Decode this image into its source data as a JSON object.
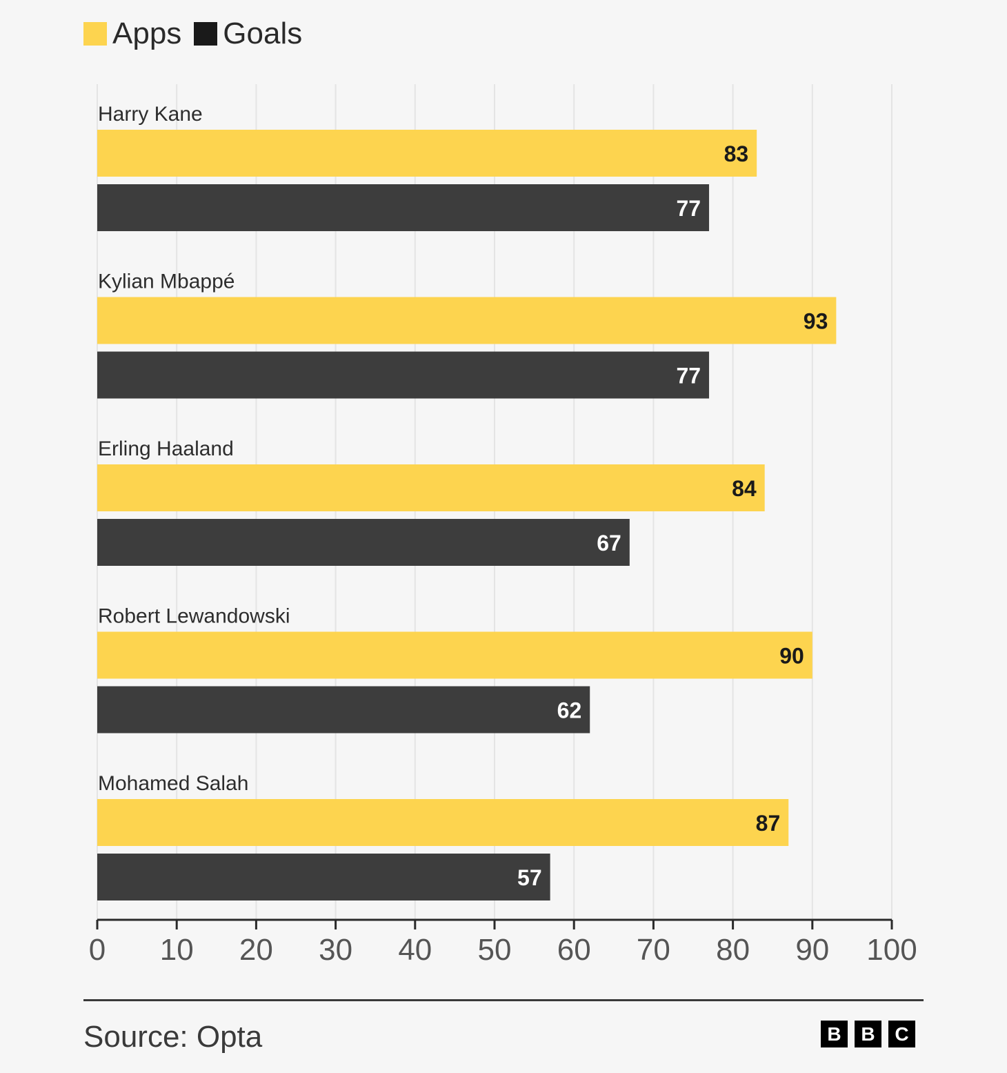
{
  "legend": {
    "items": [
      {
        "label": "Apps",
        "color": "#fdd44f"
      },
      {
        "label": "Goals",
        "color": "#1a1a1a"
      }
    ]
  },
  "chart_data": {
    "type": "bar",
    "orientation": "horizontal",
    "categories": [
      "Harry Kane",
      "Kylian Mbappé",
      "Erling Haaland",
      "Robert Lewandowski",
      "Mohamed Salah"
    ],
    "series": [
      {
        "name": "Apps",
        "color": "#fdd44f",
        "label_color": "#1a1a1a",
        "values": [
          83,
          93,
          84,
          90,
          87
        ]
      },
      {
        "name": "Goals",
        "color": "#3d3d3d",
        "label_color": "#ffffff",
        "values": [
          77,
          77,
          67,
          62,
          57
        ]
      }
    ],
    "xlim": [
      0,
      100
    ],
    "xticks": [
      0,
      10,
      20,
      30,
      40,
      50,
      60,
      70,
      80,
      90,
      100
    ],
    "grid": true,
    "legend_position": "top-left",
    "data_labels": true
  },
  "footer": {
    "source": "Source: Opta",
    "logo_letters": [
      "B",
      "B",
      "C"
    ]
  }
}
